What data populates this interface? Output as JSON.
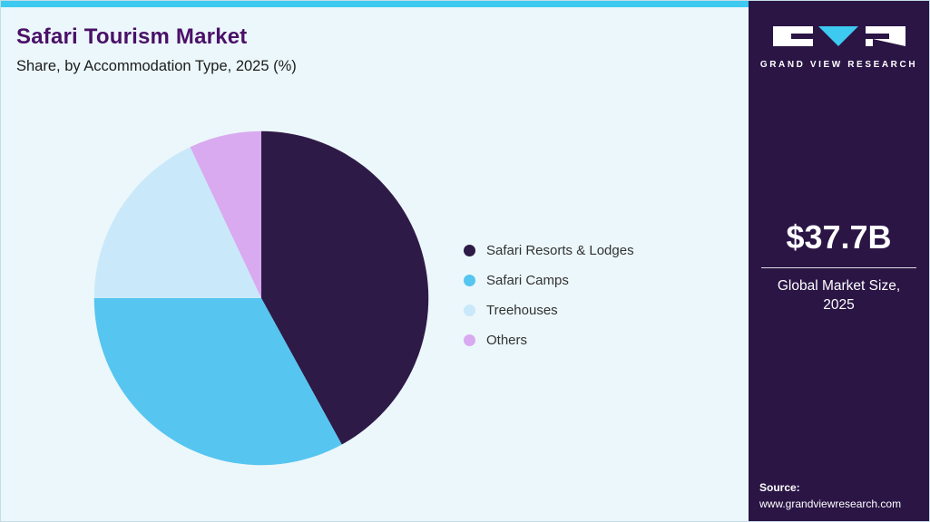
{
  "header": {
    "title": "Safari Tourism Market",
    "subtitle": "Share, by Accommodation Type, 2025 (%)"
  },
  "sidebar": {
    "logo_text": "GRAND VIEW RESEARCH",
    "market_size_value": "$37.7B",
    "market_size_label": "Global Market Size, 2025",
    "source_label": "Source:",
    "source_url": "www.grandviewresearch.com"
  },
  "colors": {
    "accent_strip": "#3ec9f0",
    "sidebar_bg": "#2a1545",
    "title_purple": "#4a1168",
    "main_bg": "#ecf7fb"
  },
  "chart_data": {
    "type": "pie",
    "title": "Safari Tourism Market Share, by Accommodation Type, 2025 (%)",
    "unit": "%",
    "legend_position": "right",
    "start_angle_deg": -90,
    "direction": "clockwise",
    "slices": [
      {
        "label": "Safari Resorts & Lodges",
        "value": 42,
        "color": "#2e1a47"
      },
      {
        "label": "Safari Camps",
        "value": 33,
        "color": "#56c5f0"
      },
      {
        "label": "Treehouses",
        "value": 18,
        "color": "#c9e9fa"
      },
      {
        "label": "Others",
        "value": 7,
        "color": "#d9aaf0"
      }
    ]
  }
}
